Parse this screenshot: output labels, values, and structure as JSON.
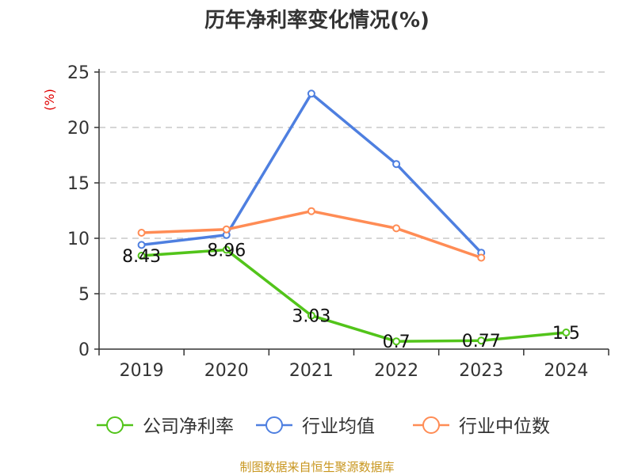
{
  "chart_data": {
    "type": "line",
    "title": "历年净利率变化情况(%)",
    "ylabel": "(%)",
    "xlabel": "",
    "categories": [
      "2019",
      "2020",
      "2021",
      "2022",
      "2023",
      "2024"
    ],
    "ylim": [
      0,
      25
    ],
    "yticks": [
      "0",
      "5",
      "10",
      "15",
      "20",
      "25"
    ],
    "grid": true,
    "legend_position": "bottom",
    "series": [
      {
        "name": "公司净利率",
        "color": "#52c41a",
        "values": [
          8.43,
          8.96,
          3.03,
          0.7,
          0.77,
          1.5
        ],
        "labels": [
          "8.43",
          "8.96",
          "3.03",
          "0.7",
          "0.77",
          "1.5"
        ]
      },
      {
        "name": "行业均值",
        "color": "#4e7fe0",
        "values": [
          9.4,
          10.3,
          23.05,
          16.7,
          8.7,
          null
        ]
      },
      {
        "name": "行业中位数",
        "color": "#ff8c55",
        "values": [
          10.5,
          10.8,
          12.45,
          10.9,
          8.25,
          null
        ]
      }
    ],
    "source": "制图数据来自恒生聚源数据库"
  }
}
